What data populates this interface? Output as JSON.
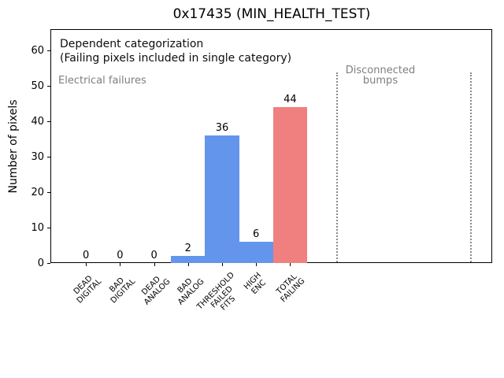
{
  "chart_data": {
    "type": "bar",
    "title": "0x17435 (MIN_HEALTH_TEST)",
    "ylabel": "Number of pixels",
    "xlabel": "",
    "categories": [
      [
        "DEAD",
        "DIGITAL"
      ],
      [
        "BAD",
        "DIGITAL"
      ],
      [
        "DEAD",
        "ANALOG"
      ],
      [
        "BAD",
        "ANALOG"
      ],
      [
        "THRESHOLD",
        "FAILED",
        "FITS"
      ],
      [
        "HIGH",
        "ENC"
      ],
      [
        "TOTAL",
        "FAILING"
      ]
    ],
    "values": [
      0,
      0,
      0,
      2,
      36,
      6,
      44
    ],
    "bar_value_labels": [
      "0",
      "0",
      "0",
      "2",
      "36",
      "6",
      "44"
    ],
    "bar_colors": [
      "#6495ed",
      "#6495ed",
      "#6495ed",
      "#6495ed",
      "#6495ed",
      "#6495ed",
      "#f08080"
    ],
    "yticks": [
      0,
      10,
      20,
      30,
      40,
      50,
      60
    ],
    "ylim": [
      0,
      66
    ],
    "grid": false,
    "legend": null,
    "annotations": {
      "dependent_line1": "Dependent categorization",
      "dependent_line2": "(Failing pixels included in single category)",
      "electrical": "Electrical failures",
      "disconnected": "Disconnected\nbumps"
    },
    "colors": {
      "bar_blue": "#6495ed",
      "bar_red": "#f08080",
      "annotation_gray": "#7f7f7f",
      "dotted_line_gray": "#8a8a8a"
    }
  }
}
